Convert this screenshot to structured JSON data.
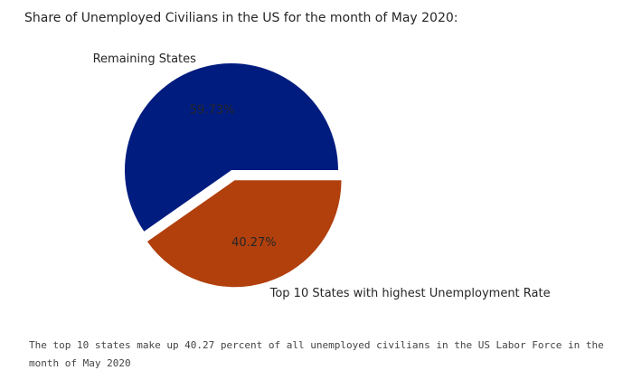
{
  "chart_data": {
    "type": "pie",
    "title": "Share of Unemployed Civilians in the US for the month of May 2020:",
    "labels": [
      "Remaining States",
      "Top 10 States with highest Unemployment Rate"
    ],
    "values": [
      59.73,
      40.27
    ],
    "value_labels": [
      "59.73%",
      "40.27%"
    ],
    "colors": [
      "#001c7f",
      "#b1400d"
    ],
    "explode": [
      0,
      0.1
    ],
    "legend": "none"
  },
  "caption": "The top 10 states make up 40.27 percent of all unemployed civilians in the US Labor Force in the month of May 2020"
}
